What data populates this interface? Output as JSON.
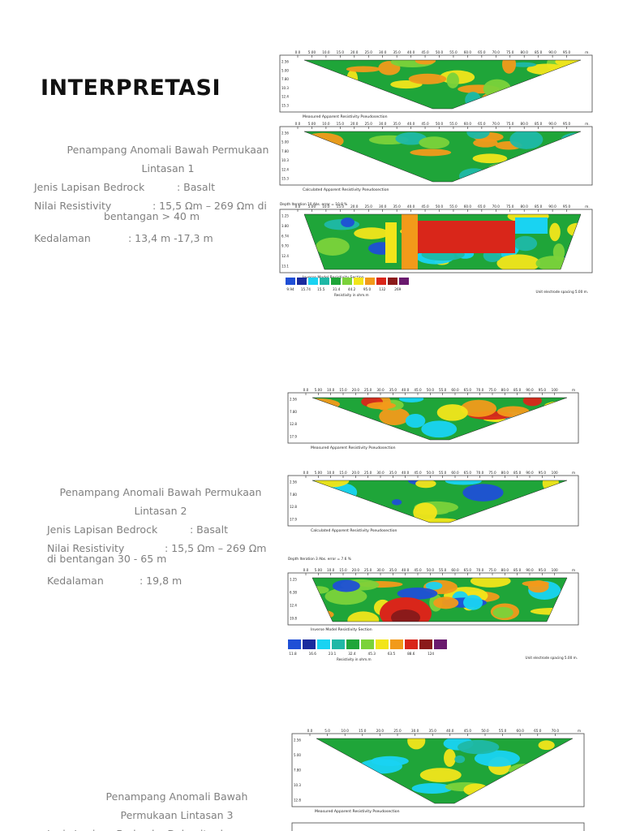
{
  "page": {
    "title": "INTERPRETASI"
  },
  "colors": {
    "blue": "#1f4fd6",
    "cyan": "#19d3f2",
    "teal": "#1fb8a6",
    "green": "#1fa539",
    "lightgreen": "#7bd23a",
    "yellow": "#f2e51a",
    "orange": "#f29a1a",
    "red": "#d9261a",
    "darkred": "#8b1a1a",
    "purple": "#6a1a6e"
  },
  "sections": [
    {
      "heading_line1": "Penampang Anomali Bawah Permukaan",
      "heading_line2": "Lintasan 1",
      "bedrock_label": "Jenis Lapisan Bedrock",
      "bedrock_value": ": Basalt",
      "resistivity_label": "Nilai Resistivity",
      "resistivity_value": ": 15,5 Ωm – 269 Ωm di",
      "resistivity_cont": "bentangan > 40 m",
      "depth_label": "Kedalaman",
      "depth_value": ": 13,4 m -17,3 m",
      "figure": {
        "panel_titles": [
          "Measured Apparent Resistivity Pseudosection",
          "Calculated Apparent Resistivity Pseudosection",
          "Inverse Model Resistivity Section"
        ],
        "axis_ticks": [
          "0.0",
          "5.00",
          "10.0",
          "15.0",
          "20.0",
          "25.0",
          "30.0",
          "35.0",
          "40.0",
          "45.0",
          "50.0",
          "55.0",
          "60.0",
          "65.0",
          "70.0",
          "75.0",
          "80.0",
          "85.0",
          "90.0",
          "95.0"
        ],
        "axis_unit": "m.",
        "depth_ticks": [
          "2.56",
          "5.00",
          "7.80",
          "10.3",
          "12.4",
          "15.3"
        ],
        "inv_header": "Depth Iteration 10 Abs. error = 10.8 %",
        "inv_depth_ticks": [
          "1.25",
          "3.80",
          "6.74",
          "9.70",
          "12.4",
          "13.1"
        ],
        "legend_values": [
          "9.94",
          "15.74",
          "15.5",
          "31.4",
          "44.2",
          "95.0",
          "132",
          "269"
        ],
        "legend_caption": "Resistivity in ohm.m",
        "spacing_note": "Unit electrode spacing 5.00 m."
      }
    },
    {
      "heading_line1": "Penampang Anomali Bawah Permukaan",
      "heading_line2": "Lintasan 2",
      "bedrock_label": "Jenis Lapisan Bedrock",
      "bedrock_value": ": Basalt",
      "resistivity_label": "Nilai Resistivity",
      "resistivity_value": ": 15,5 Ωm – 269 Ωm",
      "resistivity_cont": "di bentangan 30 - 65 m",
      "depth_label": "Kedalaman",
      "depth_value": ": 19,8 m",
      "figure": {
        "panel_titles": [
          "Measured Apparent Resistivity Pseudosection",
          "Calculated Apparent Resistivity Pseudosection",
          "Inverse Model Resistivity Section"
        ],
        "axis_ticks": [
          "0.0",
          "5.00",
          "10.0",
          "15.0",
          "20.0",
          "25.0",
          "30.0",
          "35.0",
          "40.0",
          "45.0",
          "50.0",
          "55.0",
          "60.0",
          "65.0",
          "70.0",
          "75.0",
          "80.0",
          "85.0",
          "90.0",
          "95.0",
          "100"
        ],
        "axis_unit": "m",
        "depth_ticks": [
          "2.56",
          "7.80",
          "12.8",
          "17.9"
        ],
        "inv_header": "Depth Iteration 3 Abs. error = 7.6 %",
        "inv_depth_ticks": [
          "1.25",
          "6.38",
          "12.4",
          "19.8"
        ],
        "legend_values": [
          "11.8",
          "16.6",
          "23.1",
          "32.4",
          "45.3",
          "63.5",
          "88.6",
          "124"
        ],
        "legend_caption": "Resistivity in ohm.m",
        "spacing_note": "Unit electrode spacing 5.00 m."
      }
    },
    {
      "heading_line1": "Penampang Anomali Bawah",
      "heading_line2": "Permukaan Lintasan 3",
      "bedrock_partial": "Jenis Lapisan Bedrock : Dolomite dan",
      "figure": {
        "panel_titles": [
          "Measured Apparent Resistivity Pseudosection"
        ],
        "axis_ticks": [
          "0.0",
          "5.0",
          "10.0",
          "15.0",
          "20.0",
          "25.0",
          "30.0",
          "35.0",
          "40.0",
          "45.0",
          "50.0",
          "55.0",
          "60.0",
          "65.0",
          "70.0"
        ],
        "axis_unit": "m",
        "depth_ticks": [
          "2.56",
          "5.00",
          "7.80",
          "10.3",
          "12.8"
        ]
      }
    }
  ]
}
